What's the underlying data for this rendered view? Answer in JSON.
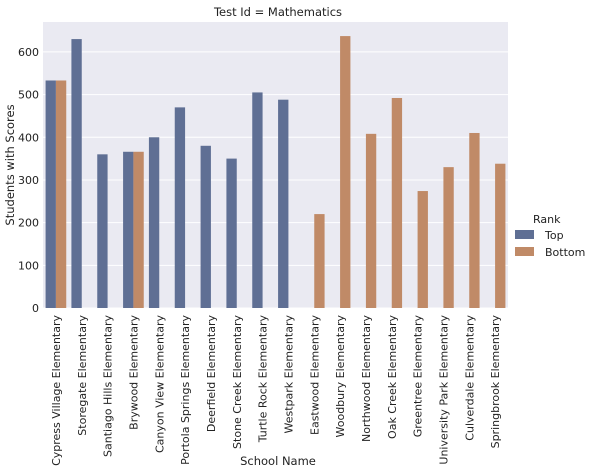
{
  "chart_data": {
    "type": "bar",
    "title": "Test Id = Mathematics",
    "xlabel": "School Name",
    "ylabel": "Students with Scores",
    "ylim": [
      0,
      670
    ],
    "yticks": [
      0,
      100,
      200,
      300,
      400,
      500,
      600
    ],
    "grid": true,
    "legend": {
      "title": "Rank",
      "placement": "right"
    },
    "categories": [
      "Cypress Village Elementary",
      "Storegate Elementary",
      "Santiago Hills Elementary",
      "Brywood Elementary",
      "Canyon View Elementary",
      "Portola Springs Elementary",
      "Deerfield Elementary",
      "Stone Creek Elementary",
      "Turtle Rock Elementary",
      "Westpark Elementary",
      "Eastwood Elementary",
      "Woodbury Elementary",
      "Northwood Elementary",
      "Oak Creek Elementary",
      "Greentree Elementary",
      "University Park Elementary",
      "Culverdale Elementary",
      "Springbrook Elementary"
    ],
    "series": [
      {
        "name": "Top",
        "color": "#5f6f94",
        "values": [
          533,
          630,
          360,
          366,
          400,
          470,
          380,
          350,
          505,
          488,
          null,
          null,
          null,
          null,
          null,
          null,
          null,
          null
        ]
      },
      {
        "name": "Bottom",
        "color": "#c08a67",
        "values": [
          533,
          null,
          null,
          366,
          null,
          null,
          null,
          null,
          null,
          null,
          220,
          637,
          408,
          492,
          274,
          330,
          410,
          338
        ]
      }
    ]
  }
}
